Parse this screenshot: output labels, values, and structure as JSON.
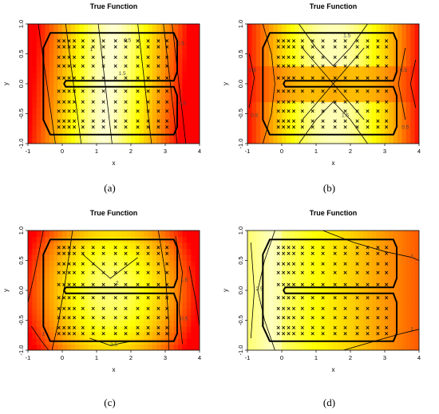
{
  "chart_data": [
    {
      "type": "heatmap",
      "panel": "a",
      "caption": "(a)",
      "title": "True Function",
      "xlabel": "x",
      "ylabel": "y",
      "xlim": [
        -1,
        4
      ],
      "ylim": [
        -1,
        1
      ],
      "xticks": [
        "-1",
        "0",
        "1",
        "2",
        "3",
        "4"
      ],
      "yticks": [
        "-1.0",
        "-0.5",
        "0.0",
        "0.5",
        "1.0"
      ],
      "color_scale": [
        "#ff0000",
        "#ff8000",
        "#ffff00",
        "#ffffff"
      ],
      "contour_labels": [
        "0.5",
        "1",
        "1.5",
        "2.5",
        "0.5"
      ]
    },
    {
      "type": "heatmap",
      "panel": "b",
      "caption": "(b)",
      "title": "True Function",
      "xlabel": "x",
      "ylabel": "y",
      "xlim": [
        -1,
        4
      ],
      "ylim": [
        -1,
        1
      ],
      "xticks": [
        "-1",
        "0",
        "1",
        "2",
        "3",
        "4"
      ],
      "yticks": [
        "-1.0",
        "-0.5",
        "0.0",
        "0.5",
        "1.0"
      ],
      "color_scale": [
        "#ff0000",
        "#ff8000",
        "#ffff00",
        "#ffffff"
      ],
      "contour_labels": [
        "1.5",
        "1.5",
        "0.5",
        "0.5",
        "0.5",
        "0.5"
      ]
    },
    {
      "type": "heatmap",
      "panel": "c",
      "caption": "(c)",
      "title": "True Function",
      "xlabel": "x",
      "ylabel": "y",
      "xlim": [
        -1,
        4
      ],
      "ylim": [
        -1,
        1
      ],
      "xticks": [
        "-1",
        "0",
        "1",
        "2",
        "3",
        "4"
      ],
      "yticks": [
        "-1.0",
        "-0.5",
        "0.0",
        "0.5",
        "1.0"
      ],
      "color_scale": [
        "#ff0000",
        "#ff8000",
        "#ffff00",
        "#ffffff"
      ],
      "contour_labels": [
        "2",
        "2.5",
        "1.5",
        "0.5",
        "1"
      ]
    },
    {
      "type": "heatmap",
      "panel": "d",
      "caption": "(d)",
      "title": "True Function",
      "xlabel": "x",
      "ylabel": "y",
      "xlim": [
        -1,
        4
      ],
      "ylim": [
        -1,
        1
      ],
      "xticks": [
        "-1",
        "0",
        "1",
        "2",
        "3",
        "4"
      ],
      "yticks": [
        "-1.0",
        "-0.5",
        "0.0",
        "0.5",
        "1.0"
      ],
      "color_scale": [
        "#ff0000",
        "#ff8000",
        "#ffff00",
        "#ffffff"
      ],
      "contour_labels": [
        "1",
        "1",
        "2.5",
        "2"
      ]
    }
  ]
}
